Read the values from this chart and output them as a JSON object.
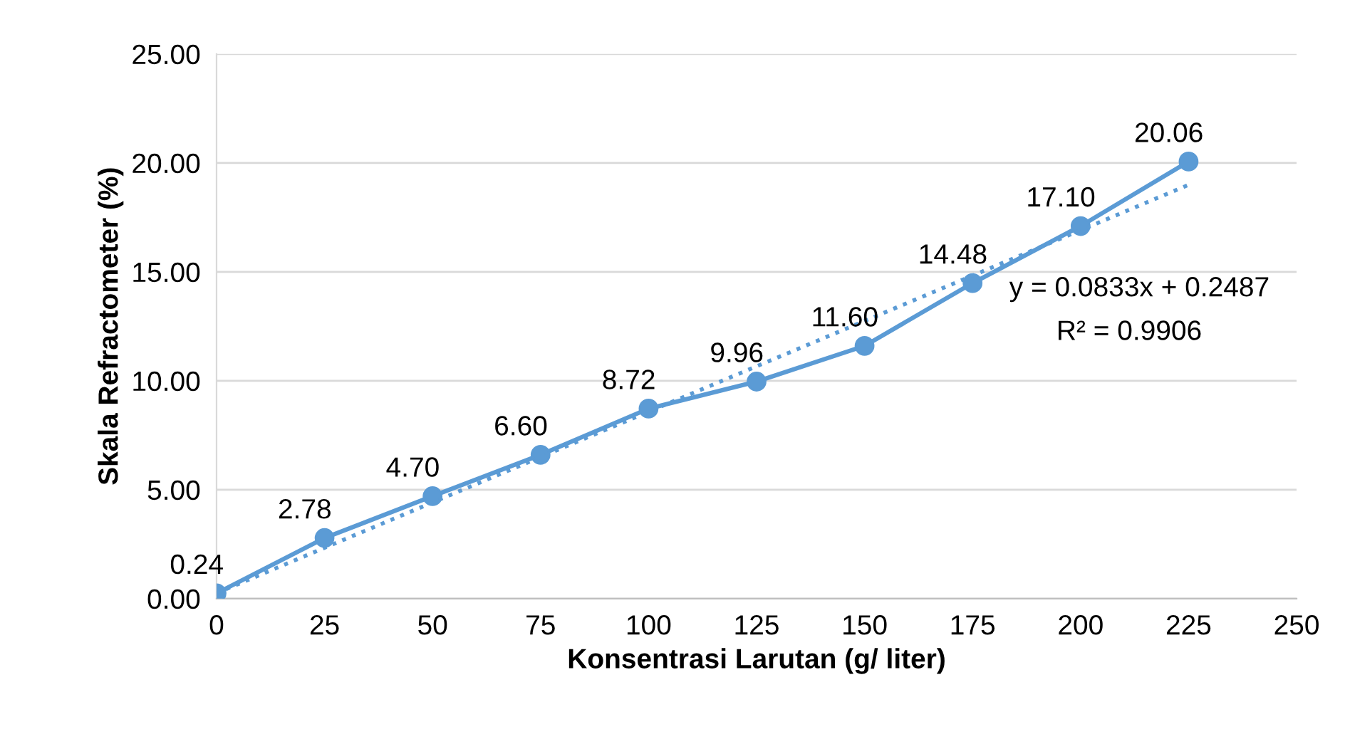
{
  "chart_data": {
    "type": "line",
    "xlabel": "Konsentrasi Larutan (g/ liter)",
    "ylabel": "Skala Refractometer (%)",
    "x": [
      0,
      25,
      50,
      75,
      100,
      125,
      150,
      175,
      200,
      225
    ],
    "series": [
      {
        "color": "#5b9bd5",
        "values": [
          0.24,
          2.78,
          4.7,
          6.6,
          8.72,
          9.96,
          11.6,
          14.48,
          17.1,
          20.06
        ],
        "value_labels": [
          "0.24",
          "2.78",
          "4.70",
          "6.60",
          "8.72",
          "9.96",
          "11.60",
          "14.48",
          "17.10",
          "20.06"
        ],
        "marker": "circle",
        "line_style": "solid"
      },
      {
        "type": "line",
        "color": "#5b9bd5",
        "x": [
          0,
          225
        ],
        "values": [
          0.2487,
          18.9912
        ],
        "marker": "none",
        "line_style": "dotted"
      }
    ],
    "annotations": [
      "y = 0.0833x + 0.2487",
      "R² = 0.9906"
    ],
    "xlim": [
      0,
      250
    ],
    "xticks": [
      0,
      25,
      50,
      75,
      100,
      125,
      150,
      175,
      200,
      225,
      250
    ],
    "ylim": [
      0,
      25
    ],
    "yticks": [
      {
        "value": 0,
        "label": "0.00"
      },
      {
        "value": 5,
        "label": "5.00"
      },
      {
        "value": 10,
        "label": "10.00"
      },
      {
        "value": 15,
        "label": "15.00"
      },
      {
        "value": 20,
        "label": "20.00"
      },
      {
        "value": 25,
        "label": "25.00"
      }
    ],
    "grid": "y",
    "legend": false
  }
}
